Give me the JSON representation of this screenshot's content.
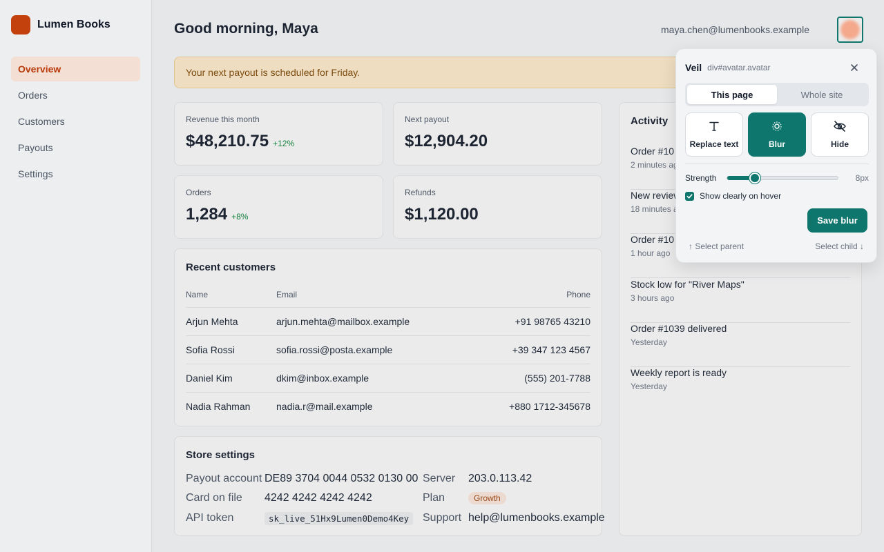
{
  "brand": {
    "name": "Lumen Books",
    "logo_color": "#c2410c"
  },
  "sidebar": {
    "items": [
      {
        "label": "Overview",
        "active": true
      },
      {
        "label": "Orders",
        "active": false
      },
      {
        "label": "Customers",
        "active": false
      },
      {
        "label": "Payouts",
        "active": false
      },
      {
        "label": "Settings",
        "active": false
      }
    ]
  },
  "header": {
    "greeting": "Good morning, Maya",
    "user_email": "maya.chen@lumenbooks.example",
    "avatar_icon": "avatar-icon"
  },
  "banner": {
    "text": "Your next payout is scheduled for Friday."
  },
  "stats": [
    {
      "label": "Revenue this month",
      "value": "$48,210.75",
      "delta": "+12%"
    },
    {
      "label": "Next payout",
      "value": "$12,904.20",
      "delta": ""
    },
    {
      "label": "Orders",
      "value": "1,284",
      "delta": "+8%"
    },
    {
      "label": "Refunds",
      "value": "$1,120.00",
      "delta": ""
    }
  ],
  "customers": {
    "title": "Recent customers",
    "columns": [
      "Name",
      "Email",
      "Phone"
    ],
    "rows": [
      {
        "name": "Arjun Mehta",
        "email": "arjun.mehta@mailbox.example",
        "phone": "+91 98765 43210"
      },
      {
        "name": "Sofia Rossi",
        "email": "sofia.rossi@posta.example",
        "phone": "+39 347 123 4567"
      },
      {
        "name": "Daniel Kim",
        "email": "dkim@inbox.example",
        "phone": "(555) 201-7788"
      },
      {
        "name": "Nadia Rahman",
        "email": "nadia.r@mail.example",
        "phone": "+880 1712-345678"
      }
    ]
  },
  "store": {
    "title": "Store settings",
    "payout_account_label": "Payout account",
    "payout_account": "DE89 3704 0044 0532 0130 00",
    "card_label": "Card on file",
    "card": "4242 4242 4242 4242",
    "api_token_label": "API token",
    "api_token": "sk_live_51Hx9Lumen0Demo4Key",
    "server_label": "Server",
    "server": "203.0.113.42",
    "plan_label": "Plan",
    "plan": "Growth",
    "support_label": "Support",
    "support": "help@lumenbooks.example"
  },
  "activity": {
    "title": "Activity",
    "items": [
      {
        "title": "Order #10",
        "time": "2 minutes ago"
      },
      {
        "title": "New review",
        "time": "18 minutes ago"
      },
      {
        "title": "Order #10",
        "time": "1 hour ago"
      },
      {
        "title": "Stock low for \"River Maps\"",
        "time": "3 hours ago"
      },
      {
        "title": "Order #1039 delivered",
        "time": "Yesterday"
      },
      {
        "title": "Weekly report is ready",
        "time": "Yesterday"
      }
    ]
  },
  "veil": {
    "title": "Veil",
    "target": "div#avatar.avatar",
    "scope_tabs": [
      {
        "label": "This page",
        "active": true
      },
      {
        "label": "Whole site",
        "active": false
      }
    ],
    "modes": [
      {
        "label": "Replace text",
        "icon": "text-icon",
        "active": false
      },
      {
        "label": "Blur",
        "icon": "blur-icon",
        "active": true
      },
      {
        "label": "Hide",
        "icon": "eye-off-icon",
        "active": false
      }
    ],
    "strength_label": "Strength",
    "strength_value": "8px",
    "strength_fraction": 0.25,
    "hover_label": "Show clearly on hover",
    "hover_checked": true,
    "save_label": "Save blur",
    "select_parent": "↑ Select parent",
    "select_child": "Select child ↓",
    "accent": "#0f766e"
  }
}
